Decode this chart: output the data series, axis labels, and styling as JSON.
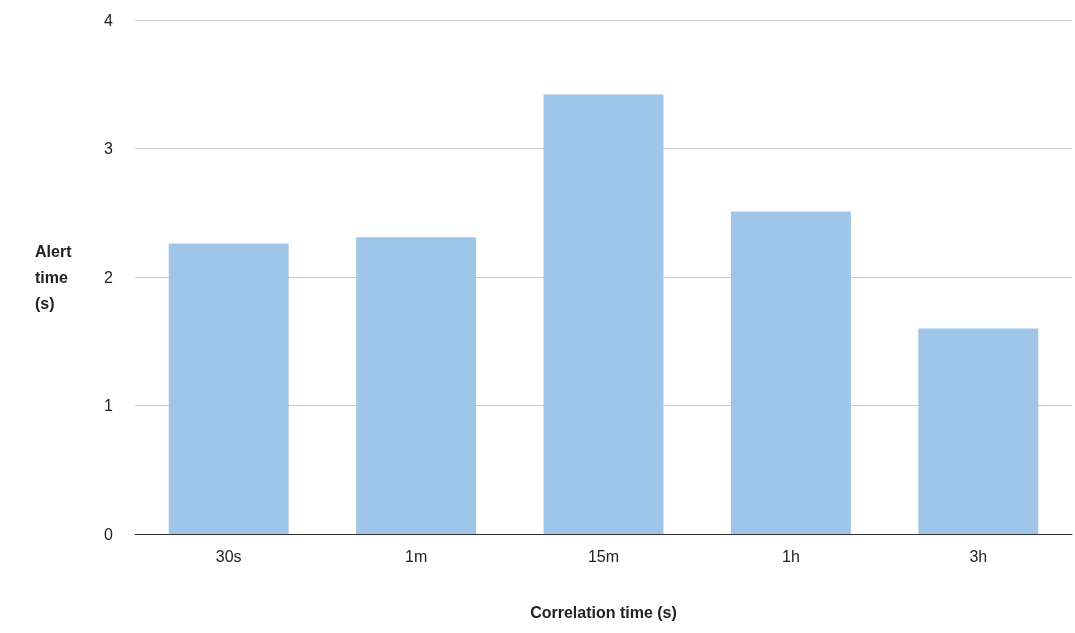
{
  "chart_data": {
    "type": "bar",
    "xlabel": "Correlation time (s)",
    "ylabel": "Alert time (s)",
    "categories": [
      "30s",
      "1m",
      "15m",
      "1h",
      "3h"
    ],
    "values": [
      2.26,
      2.31,
      3.42,
      2.51,
      1.6
    ],
    "color": "#9fc5e8",
    "ylim": [
      0,
      4
    ],
    "yticks": [
      0,
      1,
      2,
      3,
      4
    ],
    "grid": "y"
  }
}
